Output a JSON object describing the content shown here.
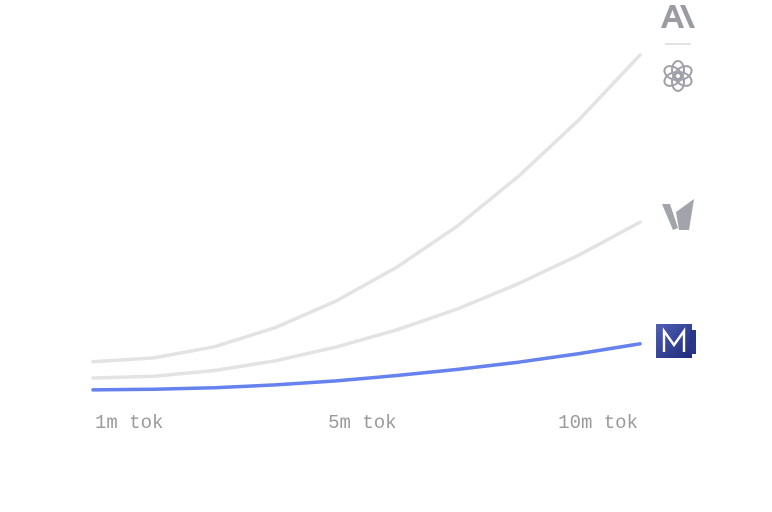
{
  "chart_data": {
    "type": "line",
    "x": [
      1,
      2,
      3,
      4,
      5,
      6,
      7,
      8,
      9,
      10
    ],
    "xlim": [
      1,
      10
    ],
    "xticks": [
      {
        "value": 1,
        "label": "1m tok"
      },
      {
        "value": 5,
        "label": "5m tok"
      },
      {
        "value": 10,
        "label": "10m tok"
      }
    ],
    "ylim": [
      0,
      100
    ],
    "series": [
      {
        "color": "#e3e3e3",
        "values": [
          10.6,
          11.7,
          14.8,
          20.1,
          27.5,
          36.9,
          48.4,
          62.1,
          77.9,
          95.8
        ]
      },
      {
        "color": "#e3e3e3",
        "values": [
          6.1,
          6.6,
          8.2,
          10.9,
          14.7,
          19.5,
          25.3,
          32.3,
          40.3,
          49.4
        ]
      },
      {
        "color": "#6582ee",
        "values": [
          2.8,
          3.0,
          3.4,
          4.2,
          5.3,
          6.8,
          8.5,
          10.5,
          12.9,
          15.6
        ]
      }
    ]
  }
}
